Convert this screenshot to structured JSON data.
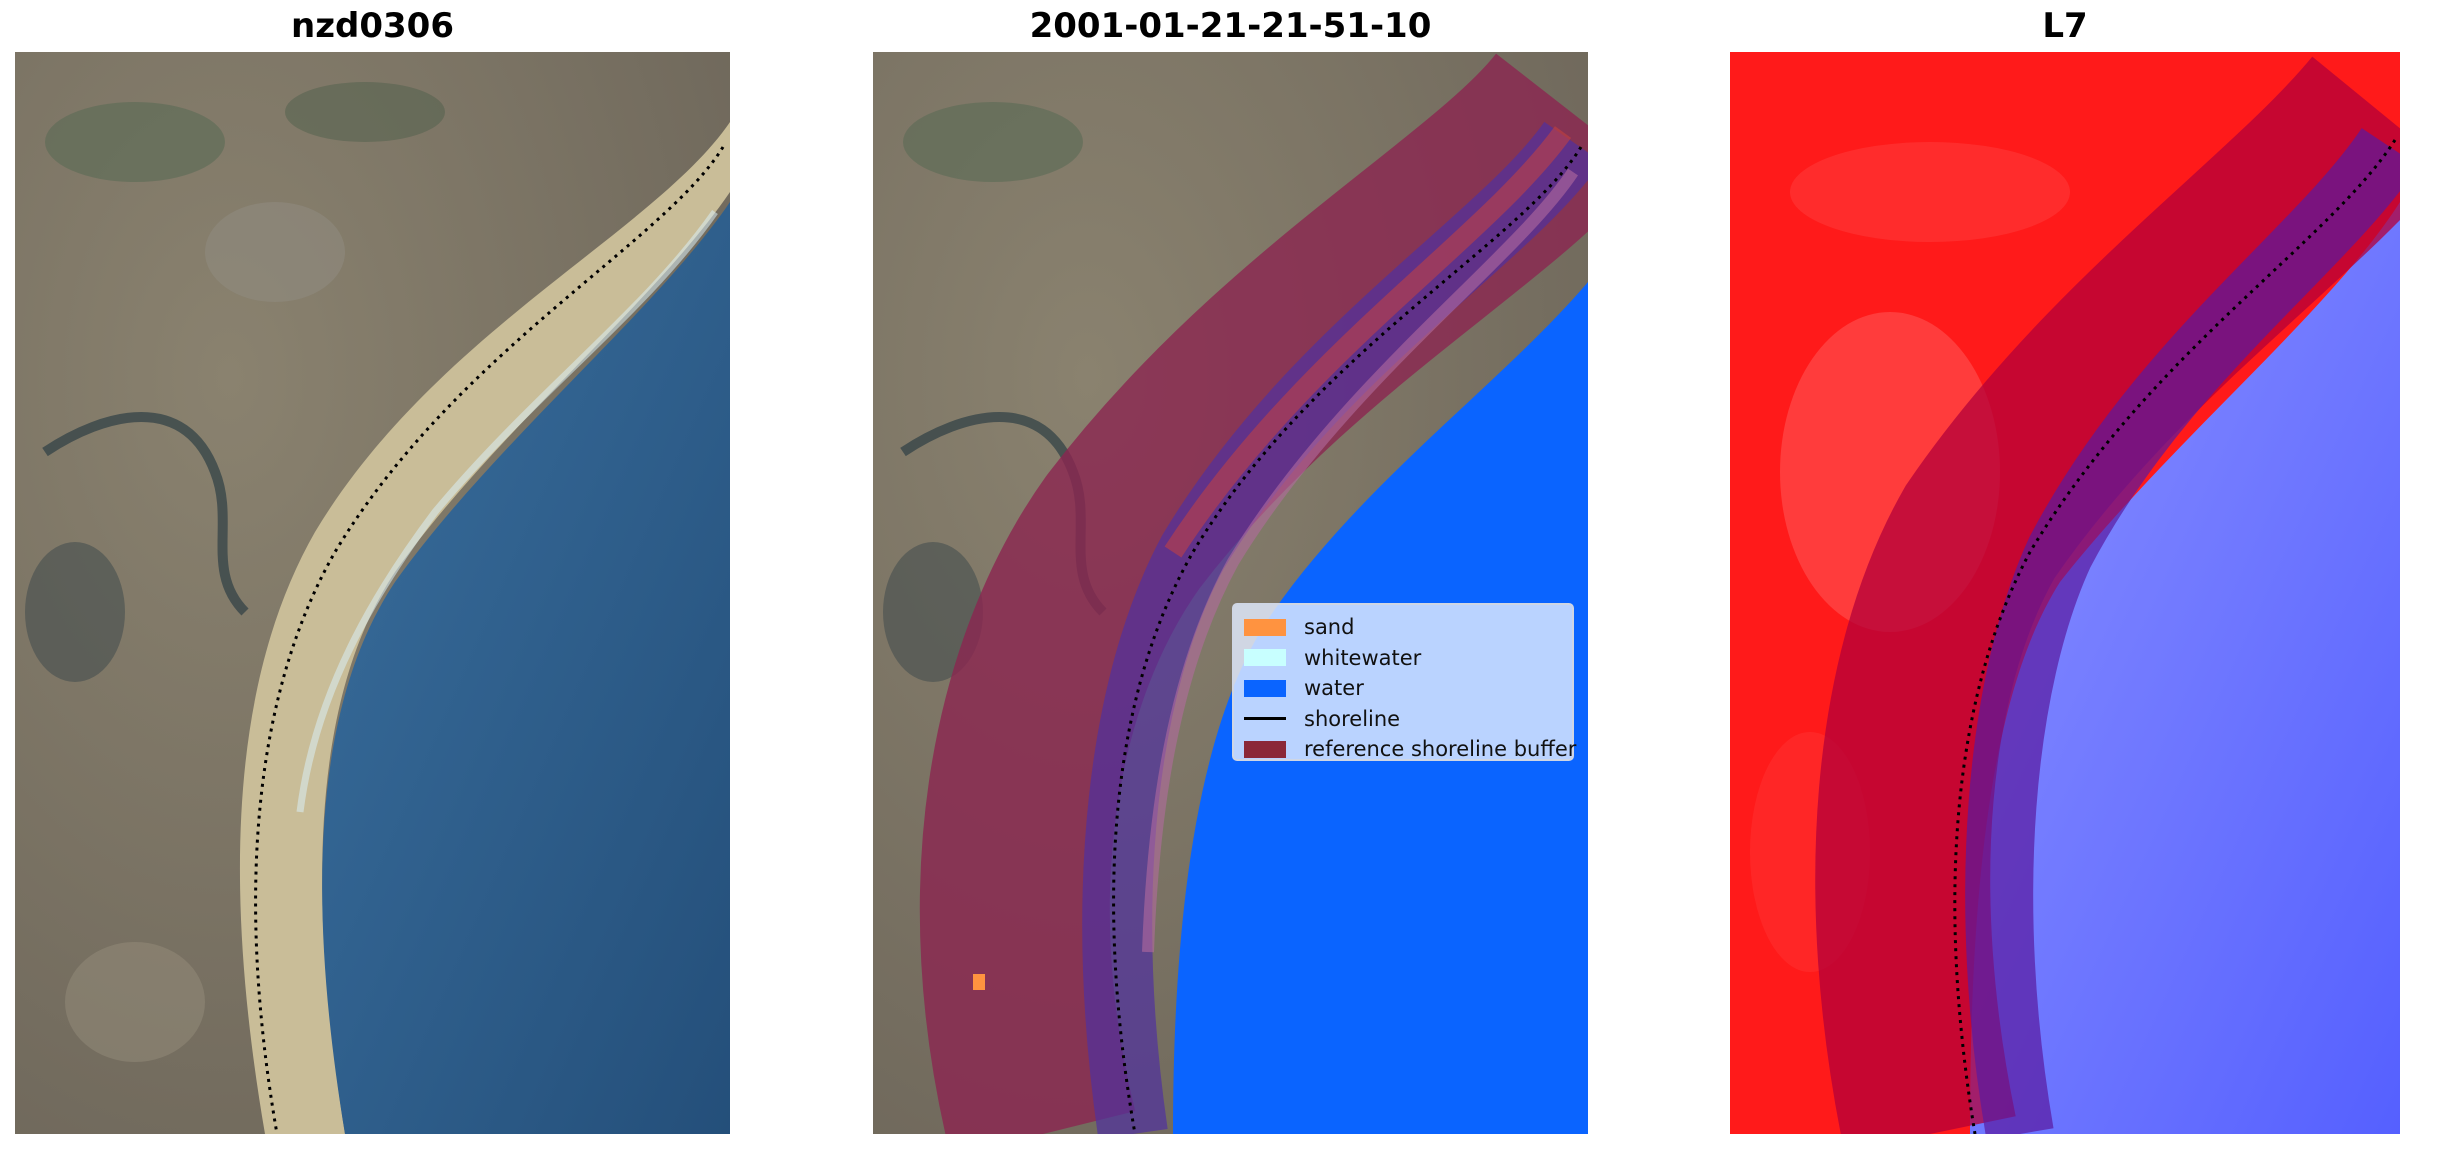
{
  "panels": [
    {
      "title": "nzd0306"
    },
    {
      "title": "2001-01-21-21-51-10"
    },
    {
      "title": "L7"
    }
  ],
  "legend": {
    "items": [
      {
        "label": "sand",
        "color": "#ff9340",
        "kind": "patch"
      },
      {
        "label": "whitewater",
        "color": "#c8ffff",
        "kind": "patch"
      },
      {
        "label": "water",
        "color": "#0a64ff",
        "kind": "patch"
      },
      {
        "label": "shoreline",
        "color": "#000000",
        "kind": "line"
      },
      {
        "label": "reference shoreline buffer",
        "color": "#8b2838",
        "kind": "patch"
      }
    ]
  },
  "colors": {
    "sea": "#2c5a86",
    "land": "#7c7466",
    "sand": "#d6c9a2",
    "classified_water": "#0a64ff",
    "buffer": "#8b2550",
    "ndwi_land": "#ff1a1a",
    "ndwi_water": "#6f78ff"
  }
}
